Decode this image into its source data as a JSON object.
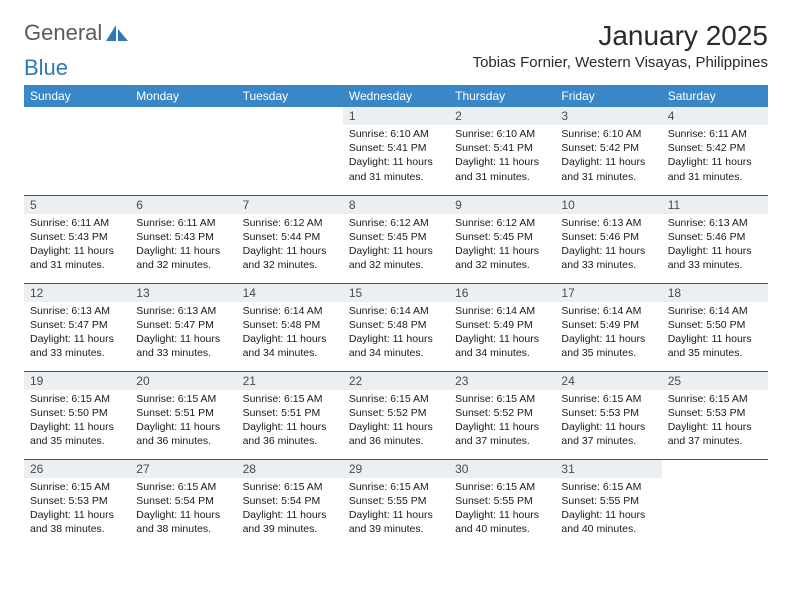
{
  "logo": {
    "text1": "General",
    "text2": "Blue",
    "color1": "#6a6a6a",
    "color2": "#2f78b5",
    "icon_color": "#2f78b5"
  },
  "header": {
    "month_title": "January 2025",
    "location": "Tobias Fornier, Western Visayas, Philippines"
  },
  "style": {
    "header_bg": "#3a87c8",
    "header_fg": "#ffffff",
    "daynum_bg": "#eceff2",
    "row_border": "#2b5a8c",
    "title_fontsize": 28,
    "location_fontsize": 15,
    "th_fontsize": 12,
    "body_fontsize": 10.5
  },
  "weekdays": [
    "Sunday",
    "Monday",
    "Tuesday",
    "Wednesday",
    "Thursday",
    "Friday",
    "Saturday"
  ],
  "weeks": [
    [
      null,
      null,
      null,
      {
        "n": "1",
        "sr": "6:10 AM",
        "ss": "5:41 PM",
        "dl": "11 hours and 31 minutes."
      },
      {
        "n": "2",
        "sr": "6:10 AM",
        "ss": "5:41 PM",
        "dl": "11 hours and 31 minutes."
      },
      {
        "n": "3",
        "sr": "6:10 AM",
        "ss": "5:42 PM",
        "dl": "11 hours and 31 minutes."
      },
      {
        "n": "4",
        "sr": "6:11 AM",
        "ss": "5:42 PM",
        "dl": "11 hours and 31 minutes."
      }
    ],
    [
      {
        "n": "5",
        "sr": "6:11 AM",
        "ss": "5:43 PM",
        "dl": "11 hours and 31 minutes."
      },
      {
        "n": "6",
        "sr": "6:11 AM",
        "ss": "5:43 PM",
        "dl": "11 hours and 32 minutes."
      },
      {
        "n": "7",
        "sr": "6:12 AM",
        "ss": "5:44 PM",
        "dl": "11 hours and 32 minutes."
      },
      {
        "n": "8",
        "sr": "6:12 AM",
        "ss": "5:45 PM",
        "dl": "11 hours and 32 minutes."
      },
      {
        "n": "9",
        "sr": "6:12 AM",
        "ss": "5:45 PM",
        "dl": "11 hours and 32 minutes."
      },
      {
        "n": "10",
        "sr": "6:13 AM",
        "ss": "5:46 PM",
        "dl": "11 hours and 33 minutes."
      },
      {
        "n": "11",
        "sr": "6:13 AM",
        "ss": "5:46 PM",
        "dl": "11 hours and 33 minutes."
      }
    ],
    [
      {
        "n": "12",
        "sr": "6:13 AM",
        "ss": "5:47 PM",
        "dl": "11 hours and 33 minutes."
      },
      {
        "n": "13",
        "sr": "6:13 AM",
        "ss": "5:47 PM",
        "dl": "11 hours and 33 minutes."
      },
      {
        "n": "14",
        "sr": "6:14 AM",
        "ss": "5:48 PM",
        "dl": "11 hours and 34 minutes."
      },
      {
        "n": "15",
        "sr": "6:14 AM",
        "ss": "5:48 PM",
        "dl": "11 hours and 34 minutes."
      },
      {
        "n": "16",
        "sr": "6:14 AM",
        "ss": "5:49 PM",
        "dl": "11 hours and 34 minutes."
      },
      {
        "n": "17",
        "sr": "6:14 AM",
        "ss": "5:49 PM",
        "dl": "11 hours and 35 minutes."
      },
      {
        "n": "18",
        "sr": "6:14 AM",
        "ss": "5:50 PM",
        "dl": "11 hours and 35 minutes."
      }
    ],
    [
      {
        "n": "19",
        "sr": "6:15 AM",
        "ss": "5:50 PM",
        "dl": "11 hours and 35 minutes."
      },
      {
        "n": "20",
        "sr": "6:15 AM",
        "ss": "5:51 PM",
        "dl": "11 hours and 36 minutes."
      },
      {
        "n": "21",
        "sr": "6:15 AM",
        "ss": "5:51 PM",
        "dl": "11 hours and 36 minutes."
      },
      {
        "n": "22",
        "sr": "6:15 AM",
        "ss": "5:52 PM",
        "dl": "11 hours and 36 minutes."
      },
      {
        "n": "23",
        "sr": "6:15 AM",
        "ss": "5:52 PM",
        "dl": "11 hours and 37 minutes."
      },
      {
        "n": "24",
        "sr": "6:15 AM",
        "ss": "5:53 PM",
        "dl": "11 hours and 37 minutes."
      },
      {
        "n": "25",
        "sr": "6:15 AM",
        "ss": "5:53 PM",
        "dl": "11 hours and 37 minutes."
      }
    ],
    [
      {
        "n": "26",
        "sr": "6:15 AM",
        "ss": "5:53 PM",
        "dl": "11 hours and 38 minutes."
      },
      {
        "n": "27",
        "sr": "6:15 AM",
        "ss": "5:54 PM",
        "dl": "11 hours and 38 minutes."
      },
      {
        "n": "28",
        "sr": "6:15 AM",
        "ss": "5:54 PM",
        "dl": "11 hours and 39 minutes."
      },
      {
        "n": "29",
        "sr": "6:15 AM",
        "ss": "5:55 PM",
        "dl": "11 hours and 39 minutes."
      },
      {
        "n": "30",
        "sr": "6:15 AM",
        "ss": "5:55 PM",
        "dl": "11 hours and 40 minutes."
      },
      {
        "n": "31",
        "sr": "6:15 AM",
        "ss": "5:55 PM",
        "dl": "11 hours and 40 minutes."
      },
      null
    ]
  ],
  "labels": {
    "sunrise": "Sunrise:",
    "sunset": "Sunset:",
    "daylight": "Daylight:"
  }
}
